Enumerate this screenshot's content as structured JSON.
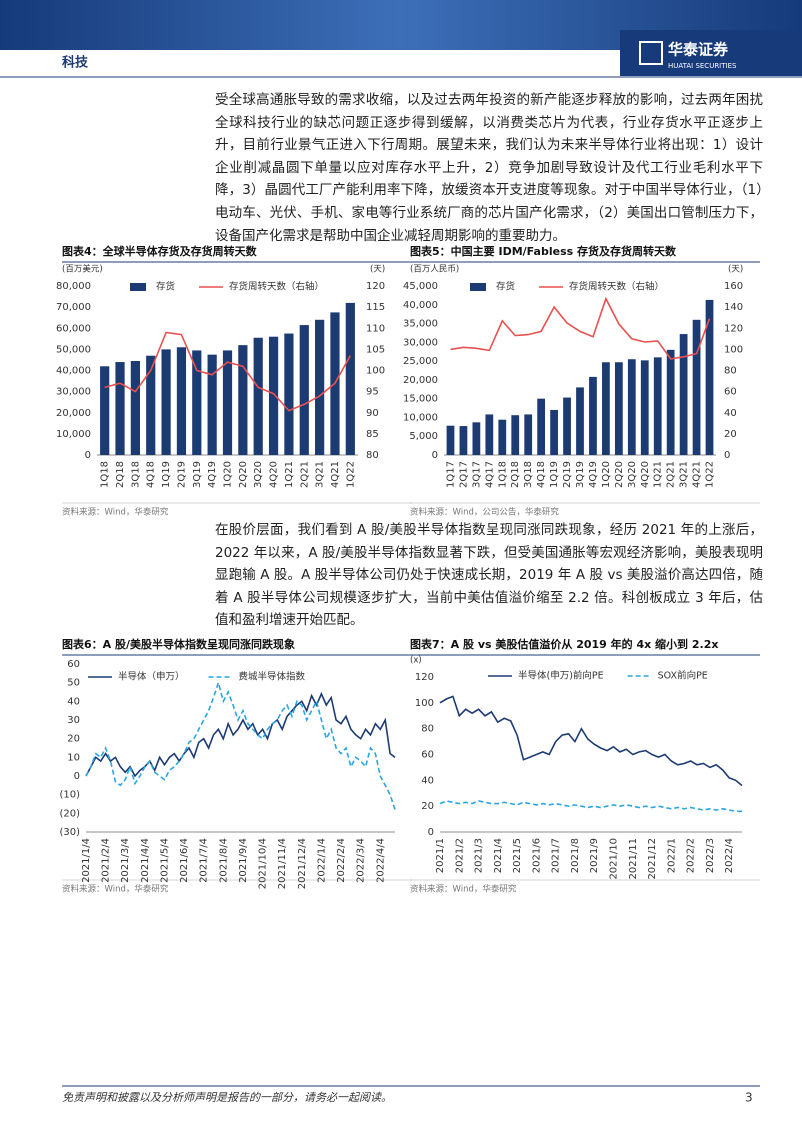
{
  "header": {
    "section": "科技",
    "brand": "华泰证券",
    "brand_en": "HUATAI SECURITIES"
  },
  "paragraphs": [
    "受全球高通胀导致的需求收缩，以及过去两年投资的新产能逐步释放的影响，过去两年困扰全球科技行业的缺芯问题正逐步得到缓解，以消费类芯片为代表，行业存货水平正逐步上升，目前行业景气正进入下行周期。展望未来，我们认为未来半导体行业将出现：1）设计企业削减晶圆下单量以应对库存水平上升，2）竞争加剧导致设计及代工行业毛利水平下降，3）晶圆代工厂产能利用率下降，放缓资本开支进度等现象。对于中国半导体行业，（1）电动车、光伏、手机、家电等行业系统厂商的芯片国产化需求，（2）美国出口管制压力下，设备国产化需求是帮助中国企业减轻周期影响的重要助力。",
    "在股价层面，我们看到 A 股/美股半导体指数呈现同涨同跌现象，经历 2021 年的上涨后，2022 年以来，A 股/美股半导体指数显著下跌，但受美国通胀等宏观经济影响，美股表现明显跑输 A 股。A 股半导体公司仍处于快速成长期，2019 年 A 股 vs 美股溢价高达四倍，随着 A 股半导体公司规模逐步扩大，当前中美估值溢价缩至 2.2 倍。科创板成立 3 年后，估值和盈利增速开始匹配。"
  ],
  "chart_data": [
    {
      "type": "bar",
      "title": "图表4：全球半导体存货及存货周转天数",
      "source": "资料来源：Wind，华泰研究",
      "y_label": "(百万美元)",
      "y2_label": "(天)",
      "categories": [
        "1Q18",
        "2Q18",
        "3Q18",
        "4Q18",
        "1Q19",
        "2Q19",
        "3Q19",
        "4Q19",
        "1Q20",
        "2Q20",
        "3Q20",
        "4Q20",
        "1Q21",
        "2Q21",
        "3Q21",
        "4Q21",
        "1Q22"
      ],
      "series": [
        {
          "name": "存货",
          "type": "bar",
          "color": "#1d3b73",
          "values": [
            42000,
            44000,
            44500,
            47000,
            50000,
            51000,
            49500,
            47500,
            49500,
            52000,
            55500,
            56000,
            57500,
            61500,
            64000,
            67500,
            72000
          ]
        },
        {
          "name": "存货周转天数（右轴）",
          "type": "line",
          "axis": "y2",
          "color": "#e8514f",
          "values": [
            96,
            97,
            95,
            100,
            109,
            108.5,
            100,
            99,
            102,
            101,
            96,
            94.5,
            90.5,
            92,
            94,
            97,
            103.5
          ]
        }
      ],
      "ylim": [
        0,
        80000
      ],
      "yticks": [
        0,
        {
          "value": 10000,
          "label": "10,000"
        },
        {
          "value": 20000,
          "label": "20,000"
        },
        {
          "value": 30000,
          "label": "30,000"
        },
        {
          "value": 40000,
          "label": "40,000"
        },
        {
          "value": 50000,
          "label": "50,000"
        },
        {
          "value": 60000,
          "label": "60,000"
        },
        {
          "value": 70000,
          "label": "70,000"
        },
        {
          "value": 80000,
          "label": "80,000"
        }
      ],
      "y2lim": [
        80,
        120
      ],
      "y2ticks": [
        80,
        85,
        90,
        95,
        100,
        105,
        110,
        115,
        120
      ],
      "legend": "top"
    },
    {
      "type": "bar",
      "title": "图表5：中国主要 IDM/Fabless 存货及存货周转天数",
      "source": "资料来源：Wind，公司公告，华泰研究",
      "y_label": "(百万人民币)",
      "y2_label": "(天)",
      "categories": [
        "1Q17",
        "2Q17",
        "3Q17",
        "4Q17",
        "1Q18",
        "2Q18",
        "3Q18",
        "4Q18",
        "1Q19",
        "2Q19",
        "3Q19",
        "4Q19",
        "1Q20",
        "2Q20",
        "3Q20",
        "4Q20",
        "1Q21",
        "2Q21",
        "3Q21",
        "4Q21",
        "1Q22"
      ],
      "series": [
        {
          "name": "存货",
          "type": "bar",
          "color": "#1d3b73",
          "values": [
            7800,
            7700,
            8700,
            10800,
            9400,
            10600,
            10800,
            15000,
            12000,
            15300,
            18000,
            20800,
            24700,
            24700,
            25500,
            25200,
            26000,
            28000,
            32200,
            36000,
            41300
          ]
        },
        {
          "name": "存货周转天数（右轴）",
          "type": "line",
          "axis": "y2",
          "color": "#e8514f",
          "values": [
            100,
            102,
            101,
            99,
            127,
            113,
            114,
            117,
            140,
            125,
            117,
            112,
            148,
            124,
            110,
            107,
            108,
            91,
            93,
            96,
            129
          ]
        }
      ],
      "ylim": [
        0,
        45000
      ],
      "yticks": [
        0,
        {
          "value": 5000,
          "label": "5,000"
        },
        {
          "value": 10000,
          "label": "10,000"
        },
        {
          "value": 15000,
          "label": "15,000"
        },
        {
          "value": 20000,
          "label": "20,000"
        },
        {
          "value": 25000,
          "label": "25,000"
        },
        {
          "value": 30000,
          "label": "30,000"
        },
        {
          "value": 35000,
          "label": "35,000"
        },
        {
          "value": 40000,
          "label": "40,000"
        },
        {
          "value": 45000,
          "label": "45,000"
        }
      ],
      "y2lim": [
        0,
        160
      ],
      "y2ticks": [
        0,
        20,
        40,
        60,
        80,
        100,
        120,
        140,
        160
      ],
      "legend": "top"
    },
    {
      "type": "line",
      "title": "图表6：A 股/美股半导体指数呈现同涨同跌现象",
      "source": "资料来源：Wind，华泰研究",
      "categories": [
        "2021/1/4",
        null,
        null,
        null,
        "2021/2/4",
        null,
        null,
        null,
        "2021/3/4",
        null,
        null,
        null,
        "2021/4/4",
        null,
        null,
        null,
        "2021/5/4",
        null,
        null,
        null,
        "2021/6/4",
        null,
        null,
        null,
        "2021/7/4",
        null,
        null,
        null,
        "2021/8/4",
        null,
        null,
        null,
        "2021/9/4",
        null,
        null,
        null,
        "2021/10/4",
        null,
        null,
        null,
        "2021/11/4",
        null,
        null,
        null,
        "2021/12/4",
        null,
        null,
        null,
        "2022/1/4",
        null,
        null,
        null,
        "2022/2/4",
        null,
        null,
        null,
        "2022/3/4",
        null,
        null,
        null,
        "2022/4/4",
        null,
        null,
        null
      ],
      "series": [
        {
          "name": "半导体（申万）",
          "color": "#1d3b73",
          "dash": false,
          "values": [
            0,
            5,
            10,
            8,
            12,
            8,
            10,
            5,
            2,
            5,
            0,
            3,
            5,
            8,
            3,
            10,
            6,
            10,
            12,
            8,
            12,
            15,
            10,
            18,
            20,
            15,
            22,
            25,
            20,
            28,
            22,
            25,
            30,
            25,
            28,
            22,
            25,
            20,
            28,
            30,
            25,
            32,
            35,
            38,
            40,
            35,
            43,
            38,
            44,
            38,
            42,
            30,
            28,
            32,
            25,
            22,
            20,
            25,
            22,
            28,
            25,
            30,
            12,
            10
          ]
        },
        {
          "name": "费城半导体指数",
          "color": "#2aa6e0",
          "dash": true,
          "values": [
            0,
            5,
            12,
            10,
            15,
            8,
            -3,
            -5,
            -2,
            5,
            -4,
            0,
            5,
            8,
            2,
            0,
            -2,
            3,
            5,
            8,
            12,
            18,
            20,
            25,
            30,
            35,
            42,
            50,
            40,
            45,
            38,
            30,
            35,
            28,
            25,
            22,
            20,
            25,
            28,
            30,
            35,
            38,
            32,
            40,
            38,
            30,
            35,
            40,
            30,
            20,
            25,
            15,
            12,
            15,
            5,
            10,
            8,
            5,
            15,
            12,
            0,
            -5,
            -10,
            -18
          ]
        }
      ],
      "ylim": [
        -30,
        60
      ],
      "yticks": [
        {
          "value": -30,
          "label": "(30)"
        },
        {
          "value": -20,
          "label": "(20)"
        },
        {
          "value": -10,
          "label": "(10)"
        },
        0,
        10,
        20,
        30,
        40,
        50,
        60
      ],
      "legend": "top"
    },
    {
      "type": "line",
      "title": "图表7：A 股 vs 美股估值溢价从 2019 年的 4x 缩小到 2.2x",
      "source": "资料来源：Wind，华泰研究",
      "y_label": "(x)",
      "categories": [
        "2021/1",
        null,
        null,
        "2021/2",
        null,
        null,
        "2021/3",
        null,
        null,
        "2021/4",
        null,
        null,
        "2021/5",
        null,
        null,
        "2021/6",
        null,
        null,
        "2021/7",
        null,
        null,
        "2021/8",
        null,
        null,
        "2021/9",
        null,
        null,
        "2021/10",
        null,
        null,
        "2021/11",
        null,
        null,
        "2021/12",
        null,
        null,
        "2022/1",
        null,
        null,
        "2022/2",
        null,
        null,
        "2022/3",
        null,
        null,
        "2022/4",
        null,
        null
      ],
      "series": [
        {
          "name": "半导体(申万)前向PE",
          "color": "#1d3b73",
          "dash": false,
          "values": [
            100,
            103,
            105,
            90,
            95,
            92,
            95,
            90,
            93,
            85,
            88,
            86,
            75,
            56,
            58,
            60,
            62,
            60,
            70,
            75,
            76,
            70,
            80,
            72,
            68,
            65,
            63,
            66,
            62,
            64,
            60,
            62,
            63,
            60,
            58,
            60,
            55,
            52,
            53,
            55,
            52,
            53,
            50,
            52,
            48,
            42,
            40,
            36
          ]
        },
        {
          "name": "SOX前向PE",
          "color": "#2aa6e0",
          "dash": true,
          "values": [
            22,
            24,
            23,
            22,
            23,
            22,
            24,
            23,
            22,
            22,
            23,
            22,
            21,
            23,
            22,
            21,
            22,
            21,
            22,
            21,
            20,
            21,
            20,
            19,
            20,
            19,
            20,
            21,
            20,
            21,
            20,
            19,
            20,
            19,
            20,
            19,
            18,
            19,
            18,
            19,
            18,
            17,
            18,
            17,
            18,
            17,
            16,
            16
          ]
        }
      ],
      "ylim": [
        0,
        120
      ],
      "yticks": [
        0,
        20,
        40,
        60,
        80,
        100,
        120
      ],
      "legend": "top"
    }
  ],
  "footer": {
    "disclaimer": "免责声明和披露以及分析师声明是报告的一部分，请务必一起阅读。",
    "page": "3"
  }
}
